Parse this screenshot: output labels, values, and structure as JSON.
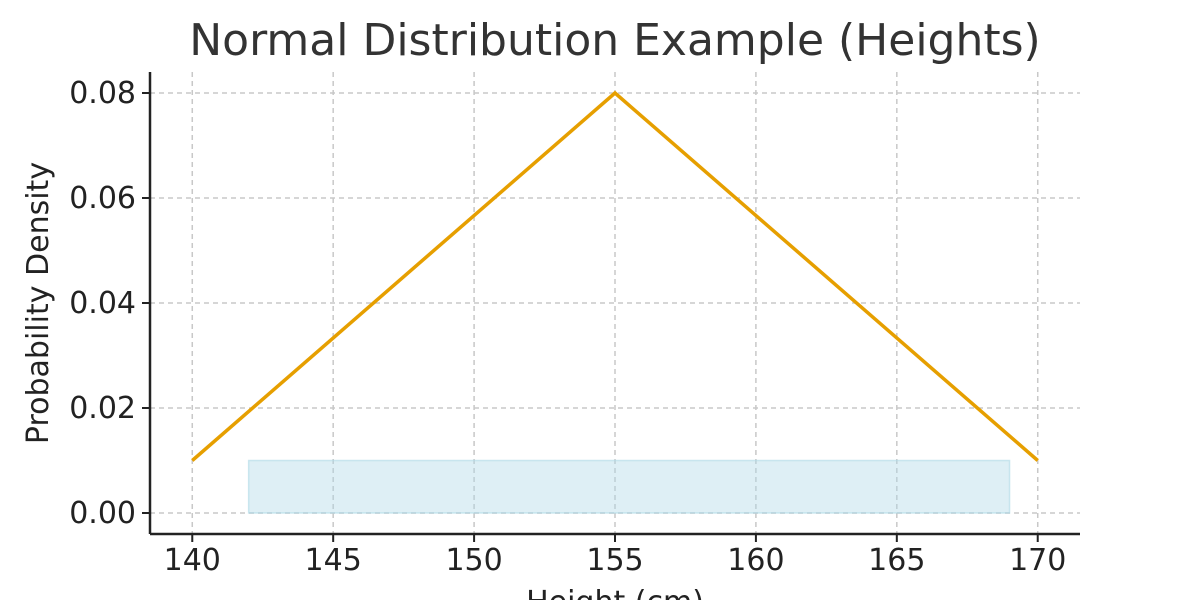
{
  "chart_data": {
    "type": "line",
    "title": "Normal Distribution Example (Heights)",
    "xlabel": "Height (cm)",
    "ylabel": "Probability Density",
    "xlim": [
      138.5,
      171.5
    ],
    "ylim": [
      -0.004,
      0.084
    ],
    "x_ticks": [
      140,
      145,
      150,
      155,
      160,
      165,
      170
    ],
    "x_tick_labels": [
      "140",
      "145",
      "150",
      "155",
      "160",
      "165",
      "170"
    ],
    "y_ticks": [
      0.0,
      0.02,
      0.04,
      0.06,
      0.08
    ],
    "y_tick_labels": [
      "0.00",
      "0.02",
      "0.04",
      "0.06",
      "0.08"
    ],
    "grid": true,
    "series": [
      {
        "type": "line",
        "color": "#E69F00",
        "x": [
          140,
          155,
          170
        ],
        "y": [
          0.01,
          0.08,
          0.01
        ]
      },
      {
        "type": "area",
        "color": "#ADD8E6",
        "opacity": 0.4,
        "x": [
          142,
          169
        ],
        "y": [
          0.01,
          0.01
        ],
        "y_base": 0.0
      }
    ]
  }
}
